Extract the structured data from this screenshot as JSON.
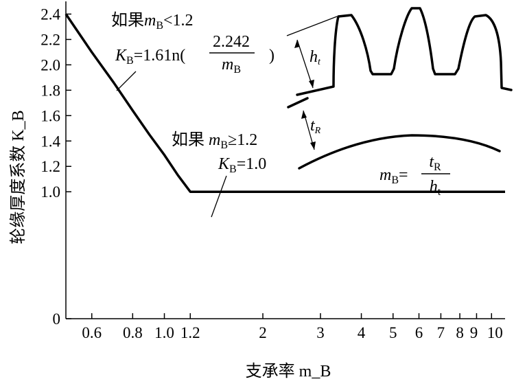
{
  "chart_data": {
    "type": "line",
    "title": "",
    "xlabel": "支承率 m_B",
    "ylabel": "轮缘厚度系数 K_B",
    "x_scale": "log",
    "xlim": [
      0.5,
      11
    ],
    "ylim": [
      0,
      2.5
    ],
    "x_ticks": [
      0.6,
      0.8,
      1.0,
      1.2,
      2,
      3,
      4,
      5,
      6,
      7,
      8,
      9,
      10
    ],
    "x_tick_labels": [
      "0.6",
      "0.8",
      "1.0",
      "1.2",
      "2",
      "3",
      "4",
      "5",
      "6",
      "7",
      "8",
      "9",
      "10"
    ],
    "y_ticks": [
      0,
      1.0,
      1.2,
      1.4,
      1.6,
      1.8,
      2.0,
      2.2,
      2.4
    ],
    "y_tick_labels": [
      "0",
      "1.0",
      "1.2",
      "1.4",
      "1.6",
      "1.8",
      "2.0",
      "2.2",
      "2.4"
    ],
    "grid": false,
    "series": [
      {
        "x": [
          0.5,
          0.6,
          0.7,
          0.8,
          0.9,
          1.0,
          1.1,
          1.2,
          1.3,
          2,
          3,
          4,
          5,
          6,
          7,
          8,
          9,
          10,
          11
        ],
        "y": [
          2.4,
          2.1,
          1.86,
          1.64,
          1.45,
          1.29,
          1.13,
          1.0,
          1.0,
          1.0,
          1.0,
          1.0,
          1.0,
          1.0,
          1.0,
          1.0,
          1.0,
          1.0,
          1.0
        ]
      }
    ],
    "annotations": {
      "cond_low_prefix": "如果",
      "cond_low_var": "m",
      "cond_low_sub": "B",
      "cond_low_op": "<1.2",
      "formula_var": "K",
      "formula_sub": "B",
      "formula_rhs": "=1.61n(",
      "formula_num": "2.242",
      "formula_den_var": "m",
      "formula_den_sub": "B",
      "formula_close": ")",
      "cond_high_prefix": "如果",
      "cond_high_var": "m",
      "cond_high_sub": "B",
      "cond_high_op": "≥1.2",
      "const_var": "K",
      "const_sub": "B",
      "const_rhs": "=1.0",
      "inset_ht_var": "h",
      "inset_ht_sub": "t",
      "inset_tr_var": "t",
      "inset_tr_sub": "R",
      "ratio_var": "m",
      "ratio_sub": "B",
      "ratio_eq": "=",
      "ratio_num_var": "t",
      "ratio_num_sub": "R",
      "ratio_den_var": "h",
      "ratio_den_sub": "t"
    }
  }
}
